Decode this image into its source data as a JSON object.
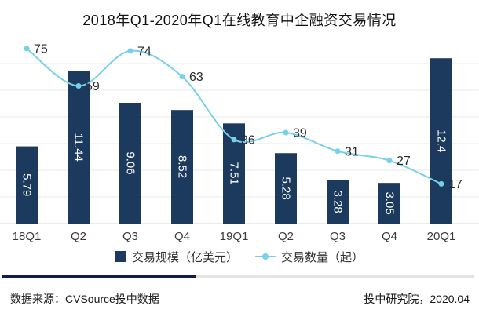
{
  "title": "2018年Q1-2020年Q1在线教育中企融资交易情况",
  "chart_data": {
    "type": "bar",
    "subtype": "bar+line combo, no y-axes shown, data labels on points",
    "title": "2018年Q1-2020年Q1在线教育中企融资交易情况",
    "categories": [
      "18Q1",
      "Q2",
      "Q3",
      "Q4",
      "19Q1",
      "Q2",
      "Q3",
      "Q4",
      "20Q1"
    ],
    "series": [
      {
        "name": "交易规模（亿美元）",
        "type": "bar",
        "values": [
          5.79,
          11.44,
          9.06,
          8.52,
          7.51,
          5.28,
          3.28,
          3.05,
          12.4
        ],
        "color": "#1c3a5e",
        "ylim": [
          0,
          14
        ],
        "label_color": "#ffffff"
      },
      {
        "name": "交易数量（起）",
        "type": "line",
        "values": [
          75,
          59,
          74,
          63,
          36,
          39,
          31,
          27,
          17
        ],
        "color": "#77d0e9",
        "ylim": [
          0,
          80
        ],
        "label_color": "#2b2b2b",
        "smooth": true
      }
    ],
    "xlabel": "",
    "ylabel": "",
    "grid": {
      "show": true,
      "horizontal_lines": 6,
      "color": "#eaeaea",
      "axis_color": "#d9d9d9"
    },
    "legend_position": "bottom"
  },
  "footer": {
    "source": "数据来源：CVSource投中数据",
    "credit": "投中研究院，2020.04"
  },
  "colors": {
    "divider_left": "#141b4e",
    "divider_right": "#e4e4e4",
    "x_label": "#3a3a3a"
  }
}
